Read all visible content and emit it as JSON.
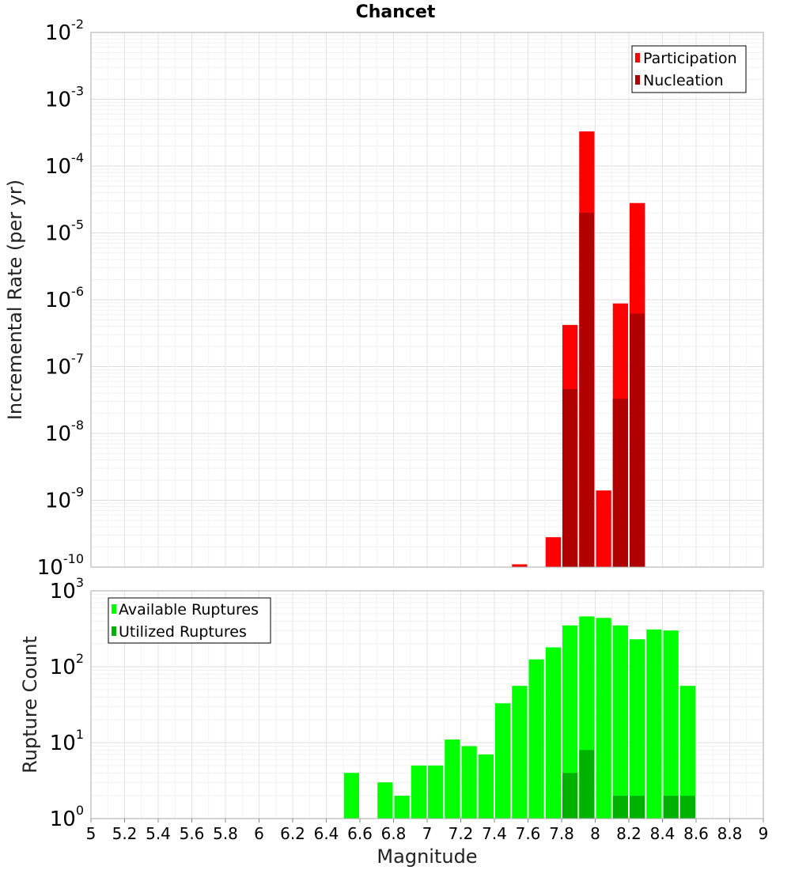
{
  "chart_data": [
    {
      "type": "bar",
      "title": "Chancet",
      "ylabel": "Incremental Rate (per yr)",
      "yscale": "log",
      "ylim_exponents": [
        -10,
        -2
      ],
      "y_tick_exponents": [
        -2,
        -3,
        -4,
        -5,
        -6,
        -7,
        -8,
        -9,
        -10
      ],
      "xlim": [
        5,
        9
      ],
      "legend_position": "top-right",
      "grid": true,
      "series": [
        {
          "name": "Participation",
          "color": "#ff0000",
          "x": [
            7.55,
            7.75,
            7.85,
            7.95,
            8.05,
            8.15,
            8.25
          ],
          "values": [
            1.1e-10,
            2.8e-10,
            4.2e-07,
            0.00033,
            1.4e-09,
            8.8e-07,
            2.8e-05
          ]
        },
        {
          "name": "Nucleation",
          "color": "#b00000",
          "x": [
            7.85,
            7.95,
            8.15,
            8.25
          ],
          "values": [
            4.6e-08,
            2e-05,
            3.3e-08,
            6.2e-07
          ]
        }
      ]
    },
    {
      "type": "bar",
      "xlabel": "Magnitude",
      "ylabel": "Rupture Count",
      "yscale": "log",
      "ylim_exponents": [
        0,
        3
      ],
      "y_tick_exponents": [
        3,
        2,
        1,
        0
      ],
      "xlim": [
        5,
        9
      ],
      "x_ticks": [
        "5",
        "5.2",
        "5.4",
        "5.6",
        "5.8",
        "6",
        "6.2",
        "6.4",
        "6.6",
        "6.8",
        "7",
        "7.2",
        "7.4",
        "7.6",
        "7.8",
        "8",
        "8.2",
        "8.4",
        "8.6",
        "8.8",
        "9"
      ],
      "legend_position": "top-left",
      "grid": true,
      "series": [
        {
          "name": "Available Ruptures",
          "color": "#00ff00",
          "x": [
            6.55,
            6.75,
            6.85,
            6.95,
            7.05,
            7.15,
            7.25,
            7.35,
            7.45,
            7.55,
            7.65,
            7.75,
            7.85,
            7.95,
            8.05,
            8.15,
            8.25,
            8.35,
            8.45,
            8.55
          ],
          "values": [
            4,
            3,
            2,
            5,
            5,
            11,
            9,
            7,
            33,
            56,
            125,
            180,
            350,
            460,
            440,
            350,
            230,
            310,
            300,
            56
          ]
        },
        {
          "name": "Utilized Ruptures",
          "color": "#00b200",
          "x": [
            7.55,
            7.65,
            7.75,
            7.85,
            7.95,
            8.05,
            8.15,
            8.25,
            8.35,
            8.45,
            8.55
          ],
          "values": [
            1,
            1,
            1,
            4,
            8,
            1,
            2,
            2,
            1,
            2,
            2
          ]
        }
      ]
    }
  ]
}
